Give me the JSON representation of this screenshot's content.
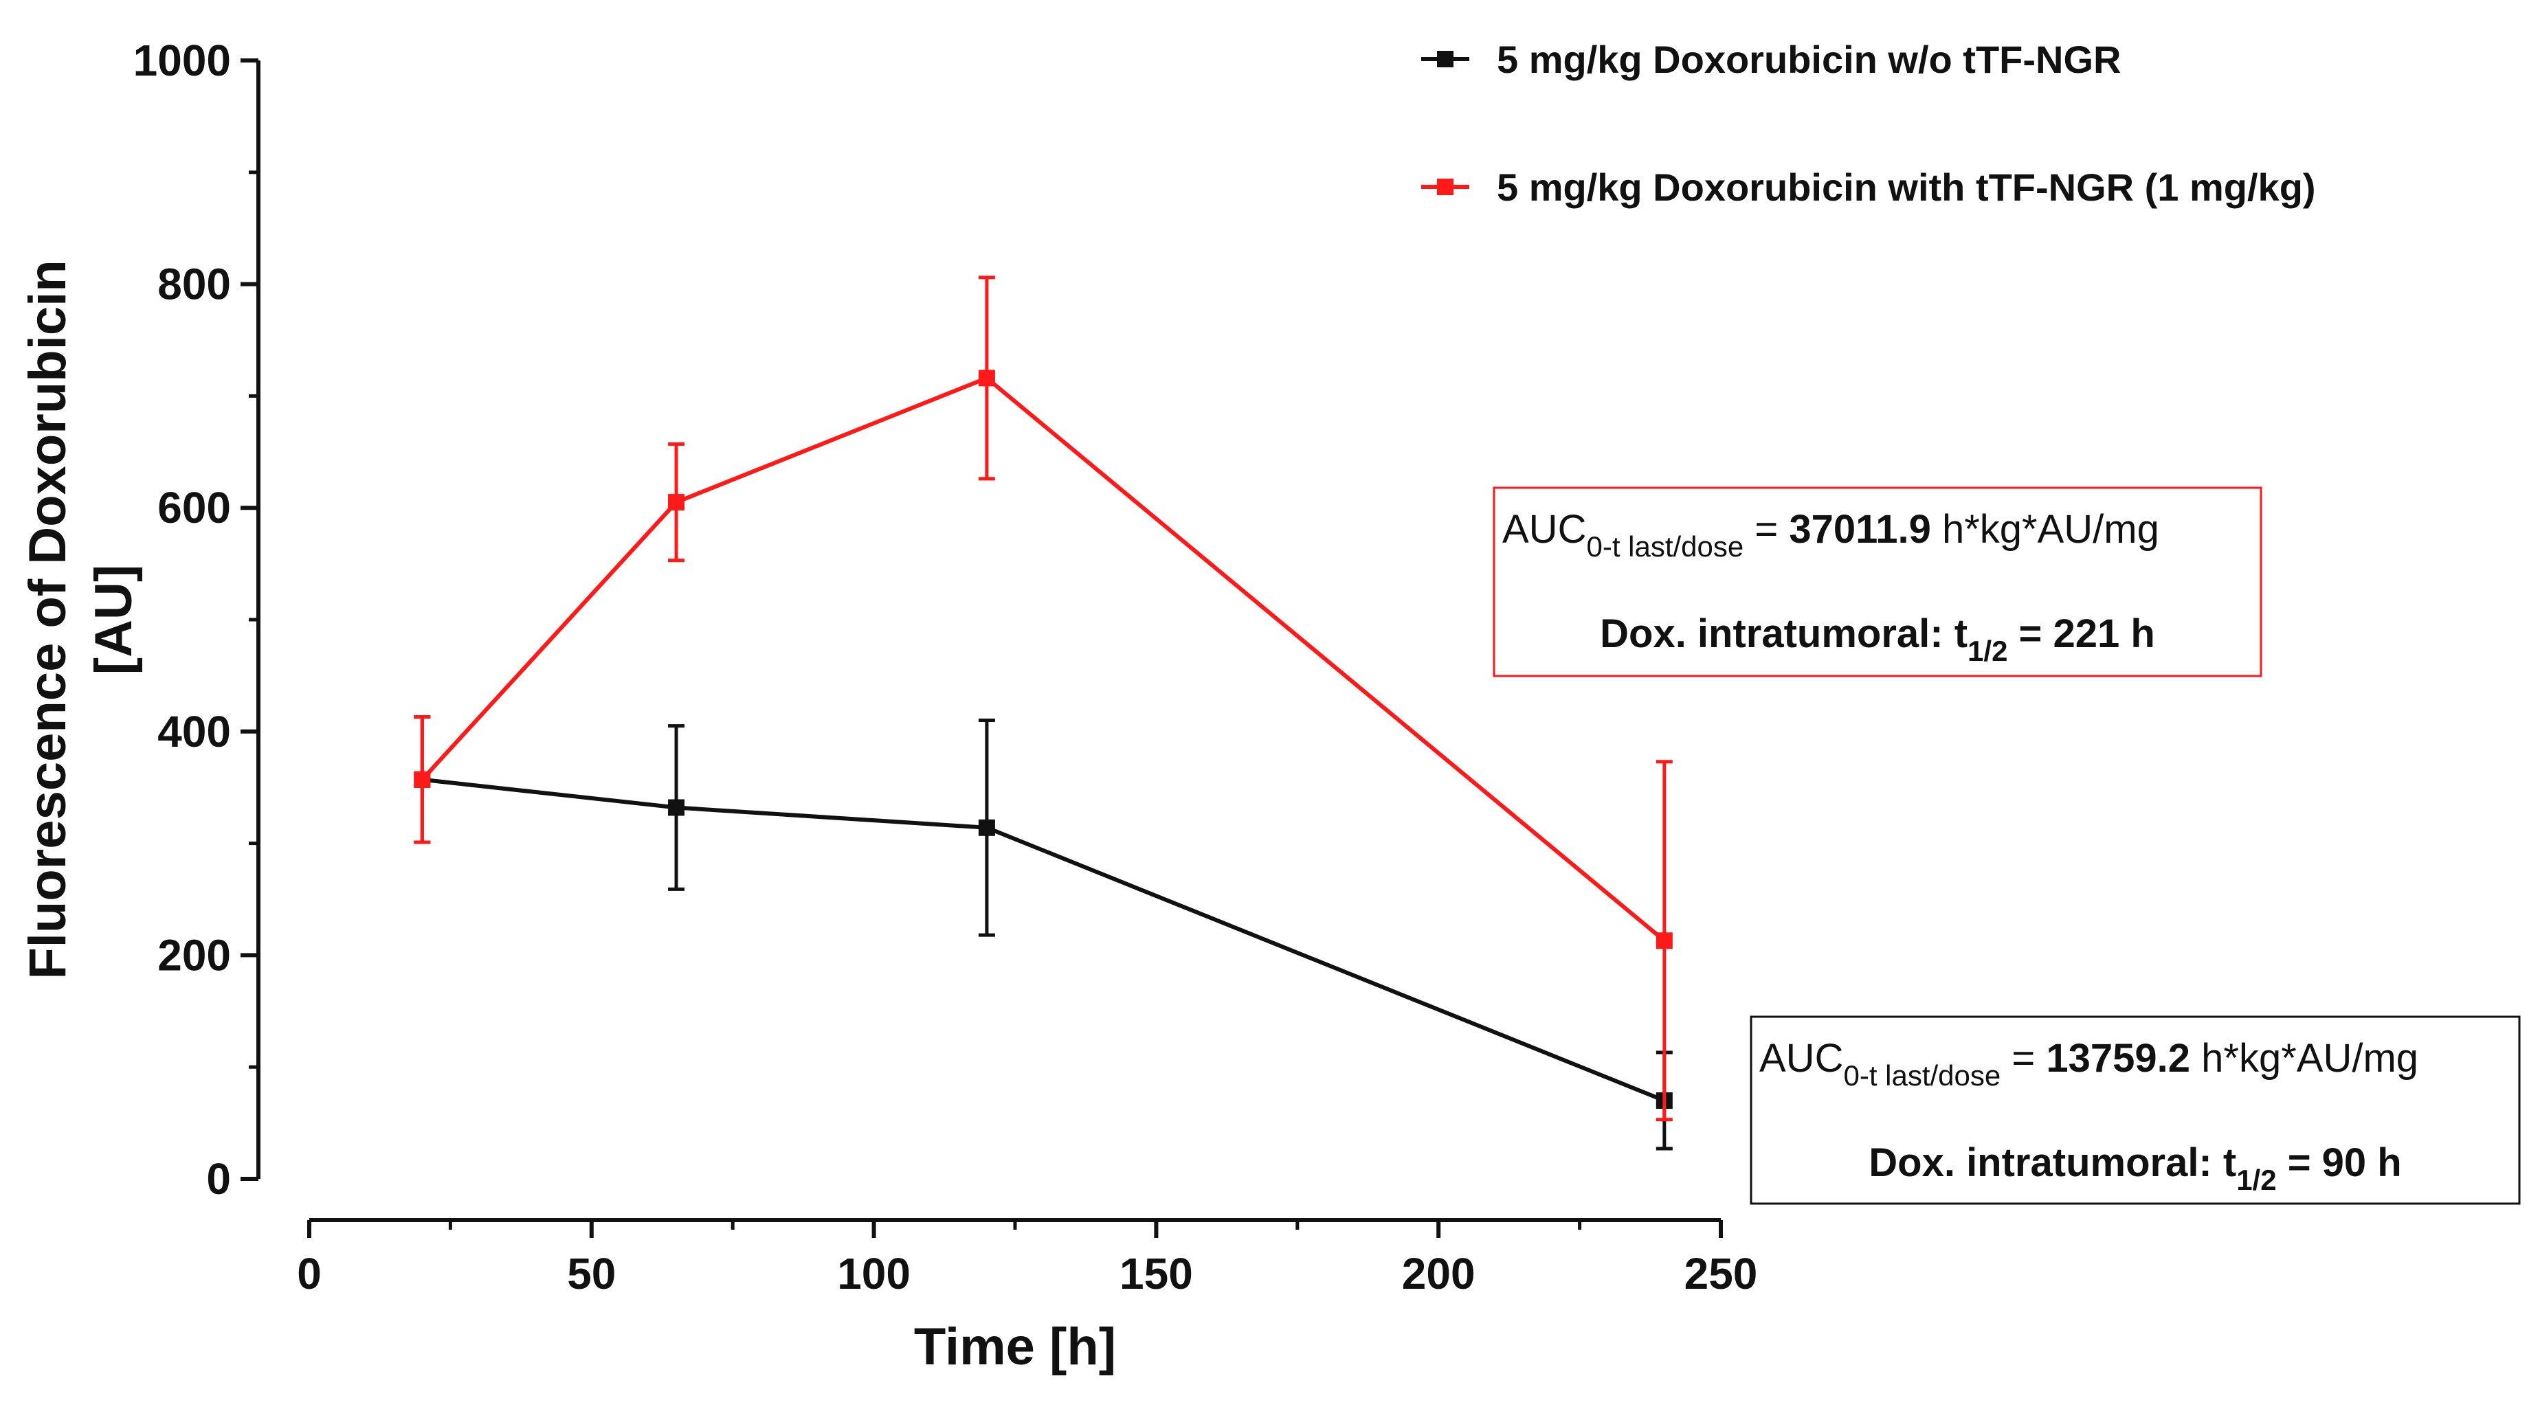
{
  "chart_data": {
    "type": "line",
    "title": "",
    "xlabel": "Time [h]",
    "ylabel_line1": "Fluorescence of Doxorubicin",
    "ylabel_line2": "[AU]",
    "xlim": [
      0,
      250
    ],
    "ylim": [
      0,
      1000
    ],
    "xticks": [
      0,
      50,
      100,
      150,
      200,
      250
    ],
    "yticks": [
      0,
      200,
      400,
      600,
      800,
      1000
    ],
    "grid": false,
    "legend_position": "top-right",
    "series": [
      {
        "name": "5 mg/kg Doxorubicin w/o tTF-NGR",
        "color": "#111111",
        "x": [
          20,
          65,
          120,
          240
        ],
        "y": [
          357,
          332,
          314,
          70
        ],
        "err": [
          56,
          73,
          96,
          43
        ]
      },
      {
        "name": "5 mg/kg Doxorubicin with tTF-NGR (1 mg/kg)",
        "color": "#ff1a1a",
        "x": [
          20,
          65,
          120,
          240
        ],
        "y": [
          357,
          605,
          716,
          213
        ],
        "err": [
          56,
          52,
          90,
          160
        ]
      }
    ],
    "annotations": [
      {
        "series_index": 1,
        "color": "#ff1a1a",
        "auc_prefix": "AUC",
        "auc_subscript": "0-t last/dose",
        "auc_equals": " = ",
        "auc_value": "37011.9",
        "auc_unit": " h*kg*AU/mg",
        "half_life_prefix": "Dox. intratumoral: t",
        "half_life_subscript": "1/2",
        "half_life_value": " = 221 h"
      },
      {
        "series_index": 0,
        "color": "#111111",
        "auc_prefix": "AUC",
        "auc_subscript": "0-t last/dose",
        "auc_equals": " = ",
        "auc_value": "13759.2",
        "auc_unit": " h*kg*AU/mg",
        "half_life_prefix": "Dox. intratumoral: t",
        "half_life_subscript": "1/2",
        "half_life_value": " = 90 h"
      }
    ]
  }
}
